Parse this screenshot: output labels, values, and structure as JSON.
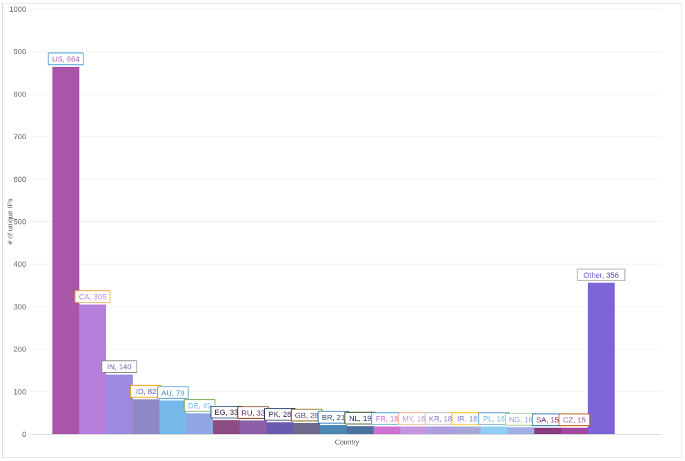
{
  "chart_data": {
    "type": "bar",
    "title": "",
    "xlabel": "Country",
    "ylabel": "# of unique IPs",
    "ylim": [
      0,
      1000
    ],
    "yticks": [
      0,
      100,
      200,
      300,
      400,
      500,
      600,
      700,
      800,
      900,
      1000
    ],
    "grid": true,
    "legend": "none",
    "categories": [
      "US",
      "CA",
      "IN",
      "ID",
      "AU",
      "DE",
      "EG",
      "RU",
      "PK",
      "GB",
      "BR",
      "NL",
      "FR",
      "MY",
      "KR",
      "IR",
      "PL",
      "NG",
      "SA",
      "CZ",
      "Other"
    ],
    "values": [
      864,
      305,
      140,
      82,
      79,
      49,
      33,
      32,
      28,
      26,
      21,
      19,
      18,
      18,
      18,
      18,
      18,
      16,
      15,
      15,
      356
    ],
    "data_labels": [
      "US, 864",
      "CA, 305",
      "IN, 140",
      "ID, 82",
      "AU, 79",
      "DE, 49",
      "EG, 33",
      "RU, 32",
      "PK, 28",
      "GB, 26",
      "BR, 21",
      "NL, 19",
      "FR, 18",
      "MY, 18",
      "KR, 18",
      "IR, 18",
      "PL, 18",
      "NG, 16",
      "SA, 15",
      "CZ, 15",
      "Other, 356"
    ],
    "colors": [
      "#a955a8",
      "#b77fdc",
      "#9c8be0",
      "#8e88c6",
      "#74b9ea",
      "#8fa5e5",
      "#8b4c81",
      "#8c5fa8",
      "#6a5bb0",
      "#6f6a8e",
      "#4a88b3",
      "#4c70a0",
      "#d072d3",
      "#c597e0",
      "#ad9fdf",
      "#a8a5d8",
      "#8fcff5",
      "#a1aee3",
      "#8a3d7e",
      "#a04aa2",
      "#7e65d6"
    ],
    "label_border_colors": [
      "#4a9fd8",
      "#f0a030",
      "#8c8c8c",
      "#f0b020",
      "#4a9fd8",
      "#6aa84f",
      "#1f4e79",
      "#843c0c",
      "#1f3864",
      "#7f6000",
      "#2e75b6",
      "#375623",
      "#4a9fd8",
      "#f4b183",
      "#bfbfbf",
      "#ffc000",
      "#5b9bd5",
      "#a9d18e",
      "#2e75b6",
      "#c55a11",
      "#a5a5a5"
    ],
    "label_text_colors": [
      "#a955a8",
      "#b77fdc",
      "#6a5bb0",
      "#6a5bb0",
      "#4a88d0",
      "#74b9ea",
      "#4a2a4a",
      "#6a2a6a",
      "#3a2a7a",
      "#4a4a6a",
      "#2a4a6a",
      "#2a3a6a",
      "#d072d3",
      "#c597e0",
      "#8a7fcf",
      "#8a8fcf",
      "#74b9ea",
      "#8fa5e5",
      "#6a2a6a",
      "#a04aa2",
      "#6a55c6"
    ]
  }
}
